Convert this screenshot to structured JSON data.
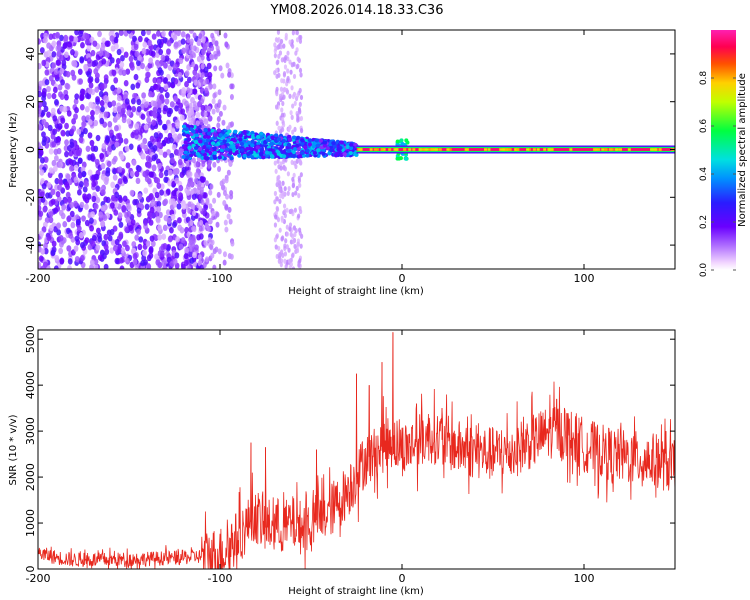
{
  "title": "YM08.2026.014.18.33.C36",
  "colors": {
    "snr_line": "#e8281e",
    "axis": "#000000"
  },
  "chart_data": [
    {
      "type": "heatmap",
      "name": "spectrogram",
      "xlabel": "Height of straight line (km)",
      "ylabel": "Frequency (Hz)",
      "xlim": [
        -200,
        150
      ],
      "ylim": [
        -50,
        50
      ],
      "xticks": [
        -200,
        -100,
        0,
        100
      ],
      "yticks": [
        -40,
        -20,
        0,
        20,
        40
      ],
      "xtick_labels": [
        "-200",
        "-100",
        "0",
        "100"
      ],
      "ytick_labels": [
        "-40",
        "-20",
        "0",
        "20",
        "40"
      ],
      "colorbar": {
        "label": "Normalized spectral amplitude",
        "range": [
          0,
          1
        ],
        "ticks": [
          0.0,
          0.2,
          0.4,
          0.6,
          0.8
        ],
        "tick_labels": [
          "0.0",
          "0.2",
          "0.4",
          "0.6",
          "0.8"
        ],
        "colormap": "rainbow-violet-to-magenta"
      },
      "features": [
        {
          "region": "noise",
          "x_range": [
            -200,
            -105
          ],
          "freq_spread_hz": 50,
          "amplitude": 0.15
        },
        {
          "region": "transition",
          "x_range": [
            -120,
            -25
          ],
          "center_freq_hz": 3,
          "freq_spread_hz": 6,
          "amplitude": 0.35
        },
        {
          "region": "vertical-streak",
          "x_range": [
            -70,
            -55
          ],
          "freq_spread_hz": 50,
          "amplitude": 0.05
        },
        {
          "region": "signal-line",
          "x_range": [
            -25,
            150
          ],
          "center_freq_hz": 0,
          "amplitude": 0.95
        }
      ]
    },
    {
      "type": "line",
      "name": "snr",
      "xlabel": "Height of straight line (km)",
      "ylabel": "SNR (10 * v/v)",
      "xlim": [
        -200,
        150
      ],
      "ylim": [
        0,
        5200
      ],
      "xticks": [
        -200,
        -100,
        0,
        100
      ],
      "yticks": [
        0,
        1000,
        2000,
        3000,
        4000,
        5000
      ],
      "xtick_labels": [
        "-200",
        "-100",
        "0",
        "100"
      ],
      "ytick_labels": [
        "0",
        "1000",
        "2000",
        "3000",
        "4000",
        "5000"
      ],
      "series": [
        {
          "name": "SNR envelope",
          "x": [
            -200,
            -190,
            -180,
            -160,
            -140,
            -120,
            -110,
            -100,
            -95,
            -90,
            -85,
            -80,
            -75,
            -70,
            -65,
            -60,
            -55,
            -50,
            -45,
            -40,
            -35,
            -30,
            -25,
            -20,
            -15,
            -10,
            -5,
            0,
            5,
            10,
            15,
            20,
            30,
            40,
            50,
            60,
            70,
            80,
            85,
            90,
            100,
            110,
            120,
            130,
            140,
            150
          ],
          "y": [
            350,
            250,
            200,
            200,
            220,
            250,
            280,
            330,
            500,
            700,
            950,
            1150,
            900,
            1000,
            900,
            1000,
            900,
            1000,
            1100,
            1250,
            1450,
            1700,
            2000,
            2400,
            2500,
            2700,
            2800,
            2600,
            2700,
            2800,
            2900,
            2850,
            2650,
            2550,
            2500,
            2550,
            2750,
            2950,
            3050,
            2950,
            2700,
            2550,
            2450,
            2400,
            2350,
            2200
          ],
          "peaks": [
            {
              "x": -83,
              "y": 2750
            },
            {
              "x": -75,
              "y": 2650
            },
            {
              "x": -47,
              "y": 2600
            },
            {
              "x": -25,
              "y": 4250
            },
            {
              "x": -18,
              "y": 4000
            },
            {
              "x": -11,
              "y": 4500
            },
            {
              "x": -5,
              "y": 5150
            },
            {
              "x": 8,
              "y": 3600
            },
            {
              "x": 22,
              "y": 3500
            },
            {
              "x": 85,
              "y": 3700
            },
            {
              "x": 145,
              "y": 3000
            }
          ],
          "noise_amplitude": 600
        }
      ]
    }
  ]
}
